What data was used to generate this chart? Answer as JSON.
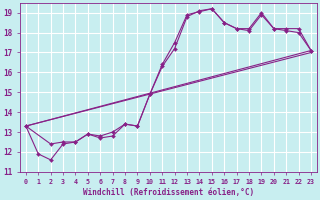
{
  "xlabel": "Windchill (Refroidissement éolien,°C)",
  "bg_color": "#c8eef0",
  "grid_color": "#ffffff",
  "line_color": "#882288",
  "xlim": [
    -0.5,
    23.5
  ],
  "ylim": [
    11,
    19.5
  ],
  "xticks": [
    0,
    1,
    2,
    3,
    4,
    5,
    6,
    7,
    8,
    9,
    10,
    11,
    12,
    13,
    14,
    15,
    16,
    17,
    18,
    19,
    20,
    21,
    22,
    23
  ],
  "yticks": [
    11,
    12,
    13,
    14,
    15,
    16,
    17,
    18,
    19
  ],
  "series_with_markers": [
    {
      "x": [
        0,
        1,
        2,
        3,
        4,
        5,
        6,
        7,
        8,
        9,
        10,
        11,
        12,
        13,
        14,
        15,
        16,
        17,
        18,
        19,
        20,
        21,
        22,
        23
      ],
      "y": [
        13.3,
        11.9,
        11.6,
        12.4,
        12.5,
        12.9,
        12.8,
        13.0,
        13.4,
        13.3,
        14.9,
        16.4,
        17.5,
        18.9,
        19.05,
        19.2,
        18.5,
        18.2,
        18.2,
        19.0,
        18.2,
        18.2,
        18.2,
        17.1
      ]
    },
    {
      "x": [
        0,
        2,
        3,
        4,
        5,
        6,
        7,
        8,
        9,
        10,
        11,
        12,
        13,
        14,
        15,
        16,
        17,
        18,
        19,
        20,
        21,
        22,
        23
      ],
      "y": [
        13.3,
        12.4,
        12.5,
        12.5,
        12.9,
        12.7,
        12.8,
        13.4,
        13.3,
        14.9,
        16.3,
        17.2,
        18.8,
        19.1,
        19.2,
        18.5,
        18.2,
        18.1,
        18.9,
        18.2,
        18.1,
        18.0,
        17.1
      ]
    }
  ],
  "series_line_only": [
    {
      "x": [
        0,
        23
      ],
      "y": [
        13.3,
        17.1
      ]
    },
    {
      "x": [
        0,
        23
      ],
      "y": [
        13.3,
        17.1
      ]
    }
  ],
  "diagonal_lines": [
    {
      "x0": 0,
      "y0": 13.3,
      "x1": 23,
      "y1": 17.1
    },
    {
      "x0": 0,
      "y0": 13.3,
      "x1": 23,
      "y1": 17.1
    }
  ]
}
